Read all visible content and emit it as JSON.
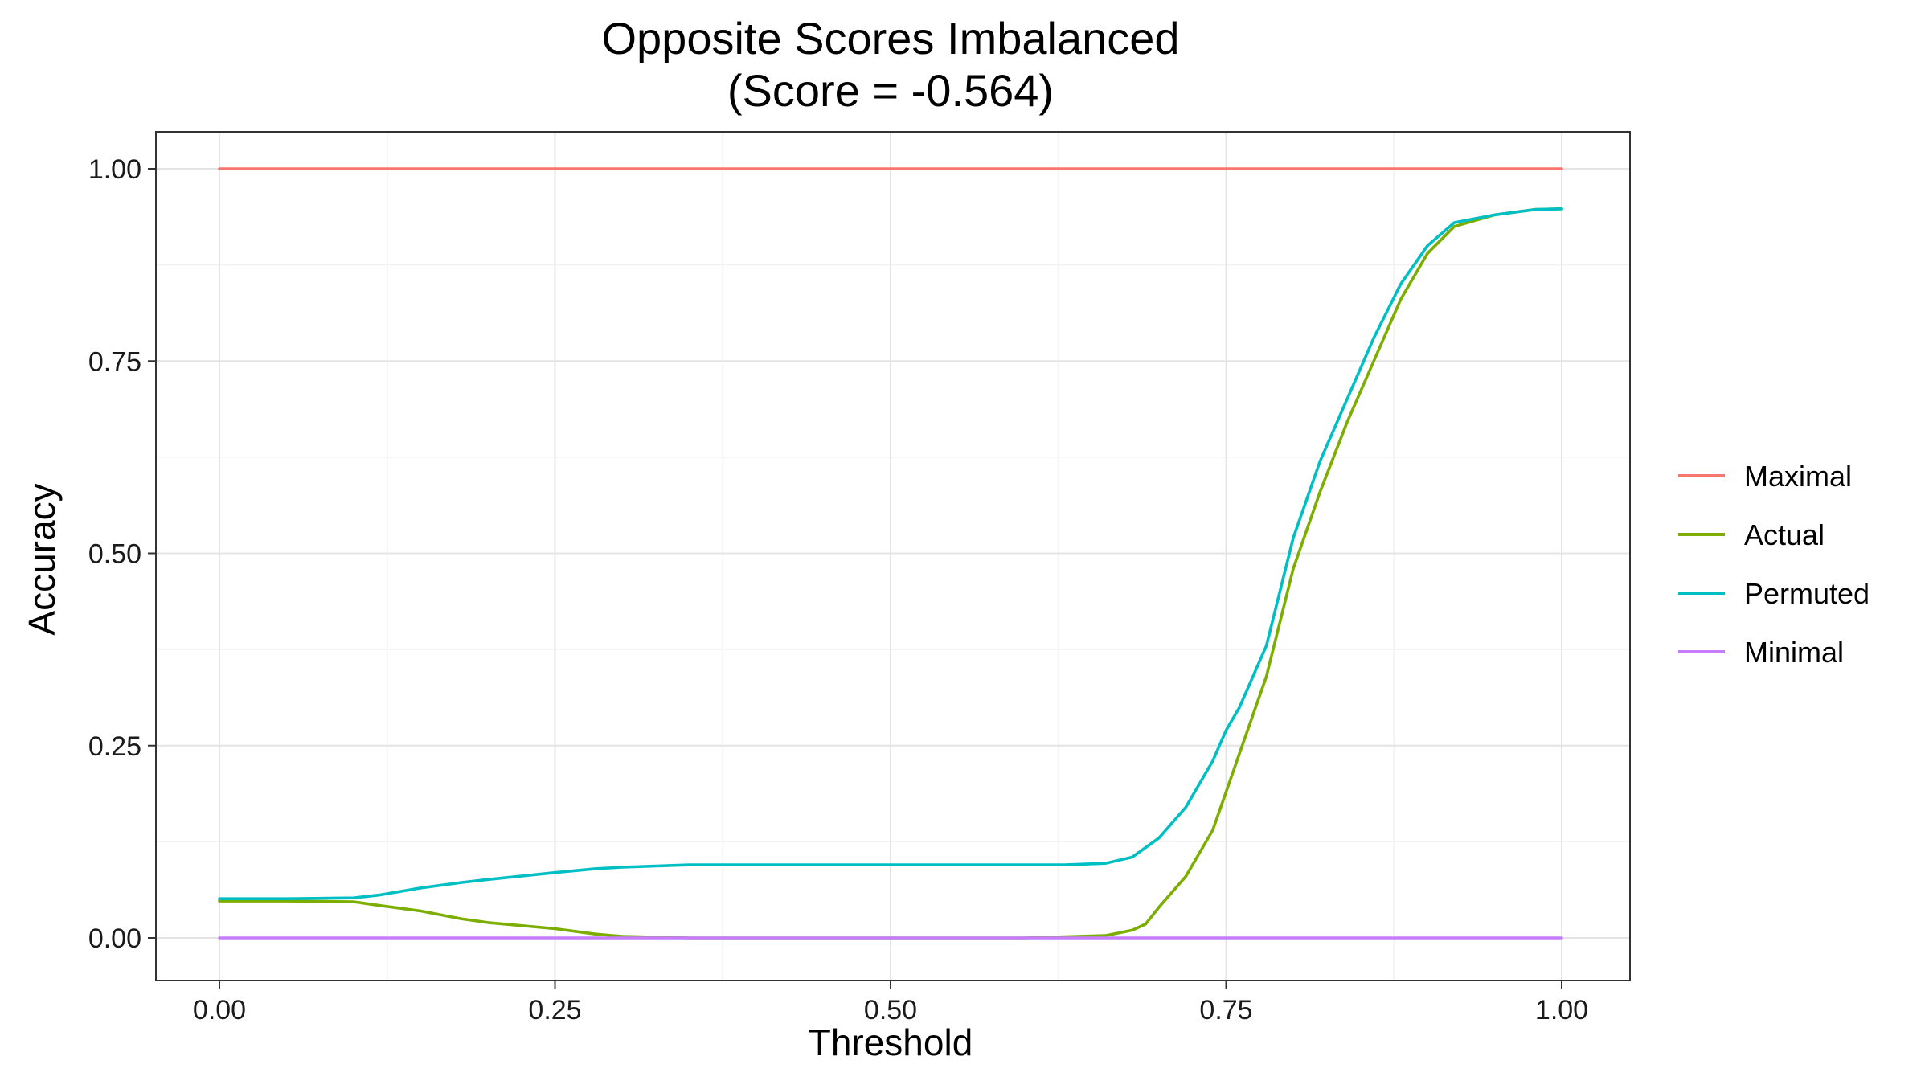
{
  "chart_data": {
    "type": "line",
    "title": "Opposite Scores Imbalanced",
    "subtitle": "(Score = -0.564)",
    "xlabel": "Threshold",
    "ylabel": "Accuracy",
    "xlim": [
      0,
      1
    ],
    "ylim": [
      0,
      1
    ],
    "x_ticks": [
      "0.00",
      "0.25",
      "0.50",
      "0.75",
      "1.00"
    ],
    "y_ticks": [
      "0.00",
      "0.25",
      "0.50",
      "0.75",
      "1.00"
    ],
    "grid": true,
    "legend_position": "right",
    "series": [
      {
        "name": "Maximal",
        "color": "#F8766D",
        "x": [
          0.0,
          1.0
        ],
        "y": [
          1.0,
          1.0
        ]
      },
      {
        "name": "Actual",
        "color": "#7CAE00",
        "x": [
          0.0,
          0.05,
          0.1,
          0.12,
          0.15,
          0.18,
          0.2,
          0.25,
          0.28,
          0.3,
          0.35,
          0.4,
          0.5,
          0.6,
          0.64,
          0.66,
          0.68,
          0.69,
          0.7,
          0.72,
          0.74,
          0.75,
          0.76,
          0.78,
          0.8,
          0.82,
          0.84,
          0.86,
          0.88,
          0.9,
          0.92,
          0.95,
          0.98,
          1.0
        ],
        "y": [
          0.048,
          0.048,
          0.047,
          0.042,
          0.035,
          0.025,
          0.02,
          0.012,
          0.005,
          0.002,
          0.0,
          0.0,
          0.0,
          0.0,
          0.002,
          0.003,
          0.01,
          0.018,
          0.04,
          0.08,
          0.14,
          0.19,
          0.24,
          0.34,
          0.48,
          0.58,
          0.67,
          0.75,
          0.83,
          0.89,
          0.925,
          0.94,
          0.947,
          0.948
        ]
      },
      {
        "name": "Permuted",
        "color": "#00BFC4",
        "x": [
          0.0,
          0.05,
          0.1,
          0.12,
          0.15,
          0.18,
          0.2,
          0.25,
          0.28,
          0.3,
          0.35,
          0.4,
          0.5,
          0.6,
          0.63,
          0.66,
          0.68,
          0.7,
          0.72,
          0.74,
          0.75,
          0.76,
          0.78,
          0.8,
          0.82,
          0.84,
          0.86,
          0.88,
          0.9,
          0.92,
          0.95,
          0.98,
          1.0
        ],
        "y": [
          0.051,
          0.051,
          0.052,
          0.056,
          0.065,
          0.072,
          0.076,
          0.085,
          0.09,
          0.092,
          0.095,
          0.095,
          0.095,
          0.095,
          0.095,
          0.097,
          0.105,
          0.13,
          0.17,
          0.23,
          0.27,
          0.3,
          0.38,
          0.52,
          0.62,
          0.7,
          0.78,
          0.85,
          0.9,
          0.93,
          0.94,
          0.947,
          0.948
        ]
      },
      {
        "name": "Minimal",
        "color": "#C77CFF",
        "x": [
          0.0,
          1.0
        ],
        "y": [
          0.0,
          0.0
        ]
      }
    ]
  }
}
